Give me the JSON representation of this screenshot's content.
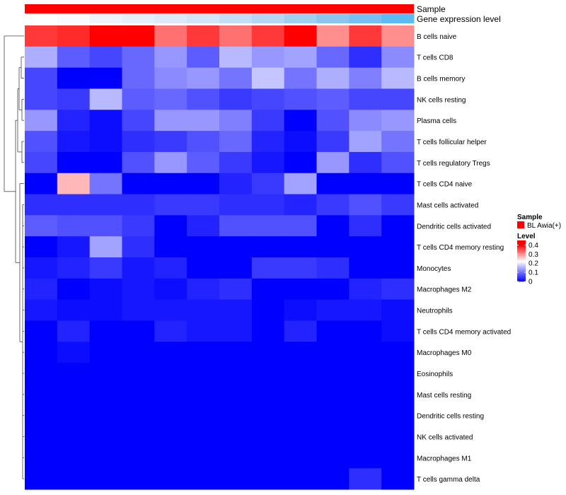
{
  "chart_data": {
    "type": "heatmap",
    "annotation_labels": {
      "sample": "Sample",
      "gene": "Gene expression level"
    },
    "sample_bar_color": "#ff0000",
    "gene_bar_colors": [
      "#ffffff",
      "#fafbfd",
      "#eef3fa",
      "#e6eff9",
      "#dde9f7",
      "#d2e5f6",
      "#c4dff4",
      "#b4d7f2",
      "#a1cff0",
      "#8cc6ef",
      "#76bff0",
      "#5dbbf1"
    ],
    "rows": [
      "B cells naive",
      "T cells CD8",
      "B cells memory",
      "NK cells resting",
      "Plasma cells",
      "T cells follicular helper",
      "T cells regulatory  Tregs",
      "T cells CD4 naive",
      "Mast cells activated",
      "Dendritic cells activated",
      "T cells CD4 memory resting",
      "Monocytes",
      "Macrophages M2",
      "Neutrophils",
      "T cells CD4 memory activated",
      "Macrophages M0",
      "Eosinophils",
      "Mast cells resting",
      "Dendritic cells resting",
      "NK cells activated",
      "Macrophages M1",
      "T cells gamma delta"
    ],
    "values": [
      [
        0.36,
        0.37,
        0.4,
        0.4,
        0.32,
        0.36,
        0.32,
        0.36,
        0.4,
        0.3,
        0.36,
        0.3
      ],
      [
        0.15,
        0.08,
        0.06,
        0.09,
        0.13,
        0.08,
        0.16,
        0.13,
        0.14,
        0.09,
        0.04,
        0.12
      ],
      [
        0.06,
        0.0,
        0.0,
        0.09,
        0.12,
        0.13,
        0.1,
        0.17,
        0.1,
        0.15,
        0.11,
        0.16
      ],
      [
        0.06,
        0.05,
        0.16,
        0.08,
        0.09,
        0.07,
        0.05,
        0.06,
        0.07,
        0.08,
        0.06,
        0.06
      ],
      [
        0.13,
        0.03,
        0.01,
        0.06,
        0.13,
        0.13,
        0.11,
        0.05,
        0.0,
        0.07,
        0.12,
        0.13
      ],
      [
        0.07,
        0.02,
        0.01,
        0.04,
        0.05,
        0.07,
        0.09,
        0.03,
        0.01,
        0.05,
        0.14,
        0.1
      ],
      [
        0.06,
        0.0,
        0.0,
        0.07,
        0.13,
        0.08,
        0.05,
        0.02,
        0.0,
        0.13,
        0.04,
        0.07
      ],
      [
        0.0,
        0.27,
        0.1,
        0.0,
        0.0,
        0.0,
        0.03,
        0.05,
        0.14,
        0.0,
        0.0,
        0.0
      ],
      [
        0.04,
        0.04,
        0.04,
        0.04,
        0.05,
        0.05,
        0.04,
        0.04,
        0.03,
        0.05,
        0.07,
        0.05
      ],
      [
        0.08,
        0.07,
        0.07,
        0.05,
        0.0,
        0.03,
        0.07,
        0.07,
        0.07,
        0.0,
        0.04,
        0.0
      ],
      [
        0.0,
        0.02,
        0.14,
        0.04,
        0.0,
        0.0,
        0.0,
        0.0,
        0.0,
        0.0,
        0.0,
        0.0
      ],
      [
        0.02,
        0.03,
        0.05,
        0.02,
        0.03,
        0.0,
        0.0,
        0.05,
        0.05,
        0.04,
        0.0,
        0.0
      ],
      [
        0.03,
        0.0,
        0.01,
        0.02,
        0.01,
        0.03,
        0.04,
        0.0,
        0.0,
        0.0,
        0.03,
        0.04
      ],
      [
        0.02,
        0.01,
        0.01,
        0.02,
        0.02,
        0.02,
        0.02,
        0.0,
        0.01,
        0.02,
        0.02,
        0.01
      ],
      [
        0.0,
        0.03,
        0.0,
        0.0,
        0.03,
        0.02,
        0.02,
        0.0,
        0.03,
        0.0,
        0.0,
        0.01
      ],
      [
        0.0,
        0.01,
        0.0,
        0.0,
        0.0,
        0.0,
        0.0,
        0.0,
        0.0,
        0.0,
        0.0,
        0.0
      ],
      [
        0.0,
        0.0,
        0.0,
        0.0,
        0.0,
        0.0,
        0.0,
        0.0,
        0.0,
        0.0,
        0.0,
        0.0
      ],
      [
        0.0,
        0.0,
        0.0,
        0.0,
        0.0,
        0.0,
        0.0,
        0.0,
        0.0,
        0.0,
        0.0,
        0.0
      ],
      [
        0.0,
        0.0,
        0.0,
        0.0,
        0.0,
        0.0,
        0.0,
        0.0,
        0.0,
        0.0,
        0.0,
        0.0
      ],
      [
        0.0,
        0.0,
        0.0,
        0.0,
        0.0,
        0.0,
        0.0,
        0.0,
        0.0,
        0.0,
        0.0,
        0.0
      ],
      [
        0.0,
        0.0,
        0.0,
        0.0,
        0.0,
        0.0,
        0.0,
        0.0,
        0.0,
        0.0,
        0.0,
        0.0
      ],
      [
        0.0,
        0.0,
        0.0,
        0.0,
        0.0,
        0.0,
        0.0,
        0.0,
        0.0,
        0.0,
        0.04,
        0.0
      ]
    ],
    "color_scale": {
      "low": "#0000ff",
      "mid": "#ffffff",
      "high": "#ff0000",
      "mid_value": 0.22,
      "max_value": 0.4,
      "range": [
        0,
        0.45
      ]
    },
    "legend": {
      "placement": "right",
      "sample_title": "Sample",
      "sample_entry": "BL Awia(+)",
      "level_title": "Level",
      "ticks": [
        0.4,
        0.3,
        0.2,
        0.1,
        0
      ],
      "tick_labels": [
        "0.4",
        "0.3",
        "0.2",
        "0.1",
        "0"
      ]
    },
    "dendrogram": "rows",
    "grid": false
  }
}
